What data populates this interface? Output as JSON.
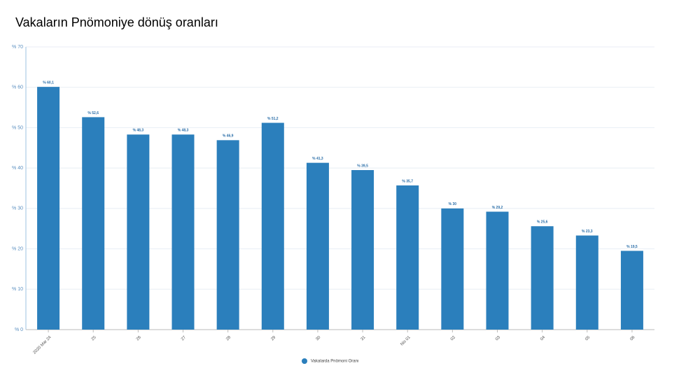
{
  "chart_data": {
    "type": "bar",
    "title": "Vakaların Pnömoniye dönüş oranları",
    "categories": [
      "2020 Mar 24",
      "25",
      "26",
      "27",
      "28",
      "29",
      "30",
      "31",
      "Nis 01",
      "02",
      "03",
      "04",
      "05",
      "06"
    ],
    "series": [
      {
        "name": "Vakalarda Pnömoni Oranı",
        "color": "#2b7fbc",
        "values": [
          60.1,
          52.6,
          48.3,
          48.3,
          46.9,
          51.2,
          41.3,
          39.5,
          35.7,
          30,
          29.2,
          25.6,
          23.3,
          19.5
        ],
        "value_labels": [
          "% 60,1",
          "% 52,6",
          "% 48,3",
          "% 48,3",
          "% 46,9",
          "% 51,2",
          "% 41,3",
          "% 39,5",
          "% 35,7",
          "% 30",
          "% 29,2",
          "% 25,6",
          "% 23,3",
          "% 19,5"
        ]
      }
    ],
    "ylim": [
      0,
      70
    ],
    "yticks": [
      {
        "value": 0,
        "label": "% 0"
      },
      {
        "value": 10,
        "label": "% 10"
      },
      {
        "value": 20,
        "label": "% 20"
      },
      {
        "value": 30,
        "label": "% 30"
      },
      {
        "value": 40,
        "label": "% 40"
      },
      {
        "value": 50,
        "label": "% 50"
      },
      {
        "value": 60,
        "label": "% 60"
      },
      {
        "value": 70,
        "label": "% 70"
      }
    ],
    "grid": true,
    "legend": "bottom"
  }
}
